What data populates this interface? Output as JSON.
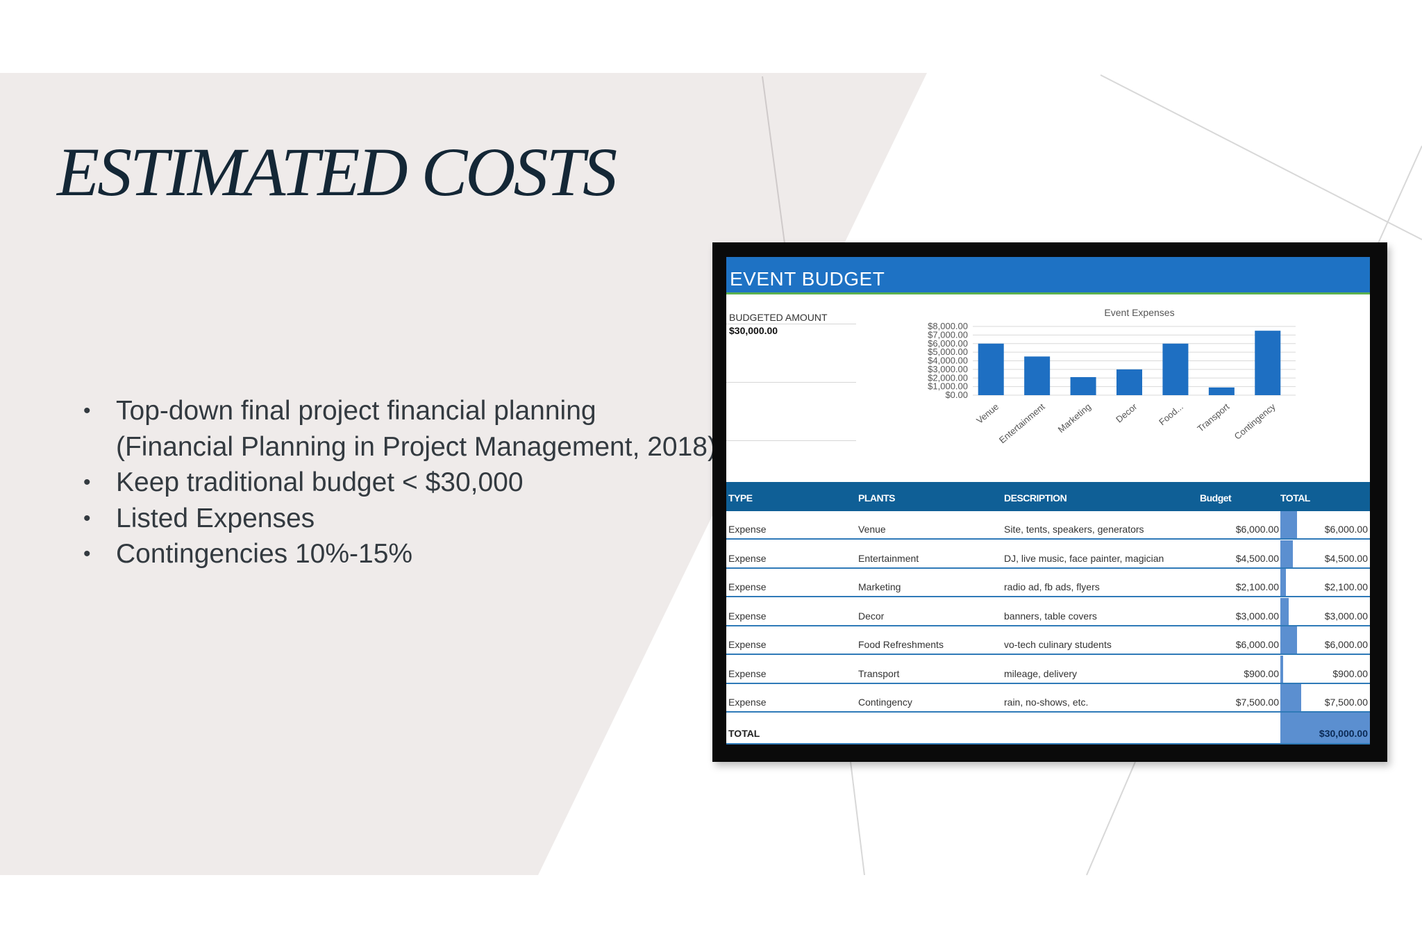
{
  "slide": {
    "title": "ESTIMATED COSTS",
    "bullets": [
      "Top-down final project financial planning",
      "(Financial Planning in Project Management, 2018)",
      "Keep traditional budget < $30,000",
      "Listed Expenses",
      "Contingencies 10%-15%"
    ],
    "bullet_symbol": "•"
  },
  "spreadsheet": {
    "title": "EVENT BUDGET",
    "budgeted_amount_label": "BUDGETED AMOUNT",
    "budgeted_amount_value": "$30,000.00",
    "columns": [
      "TYPE",
      "PLANTS",
      "DESCRIPTION",
      "Budget",
      "TOTAL"
    ],
    "rows": [
      {
        "type": "Expense",
        "plant": "Venue",
        "description": "Site, tents, speakers, generators",
        "budget": "$6,000.00",
        "total": "$6,000.00",
        "fill": 0.8
      },
      {
        "type": "Expense",
        "plant": "Entertainment",
        "description": "DJ, live music, face painter, magician",
        "budget": "$4,500.00",
        "total": "$4,500.00",
        "fill": 0.6
      },
      {
        "type": "Expense",
        "plant": "Marketing",
        "description": "radio ad, fb ads, flyers",
        "budget": "$2,100.00",
        "total": "$2,100.00",
        "fill": 0.28
      },
      {
        "type": "Expense",
        "plant": "Decor",
        "description": "banners, table covers",
        "budget": "$3,000.00",
        "total": "$3,000.00",
        "fill": 0.4
      },
      {
        "type": "Expense",
        "plant": "Food Refreshments",
        "description": "vo-tech culinary students",
        "budget": "$6,000.00",
        "total": "$6,000.00",
        "fill": 0.8
      },
      {
        "type": "Expense",
        "plant": "Transport",
        "description": "mileage, delivery",
        "budget": "$900.00",
        "total": "$900.00",
        "fill": 0.12
      },
      {
        "type": "Expense",
        "plant": "Contingency",
        "description": "rain, no-shows, etc.",
        "budget": "$7,500.00",
        "total": "$7,500.00",
        "fill": 1.0
      }
    ],
    "total_label": "TOTAL",
    "total_value": "$30,000.00"
  },
  "chart_data": {
    "type": "bar",
    "title": "Event Expenses",
    "categories": [
      "Venue",
      "Entertainment",
      "Marketing",
      "Decor",
      "Food...",
      "Transport",
      "Contingency"
    ],
    "values": [
      6000,
      4500,
      2100,
      3000,
      6000,
      900,
      7500
    ],
    "ylim": [
      0,
      8000
    ],
    "y_ticks": [
      "$0.00",
      "$1,000.00",
      "$2,000.00",
      "$3,000.00",
      "$4,000.00",
      "$5,000.00",
      "$6,000.00",
      "$7,000.00",
      "$8,000.00"
    ],
    "xlabel": "",
    "ylabel": "",
    "grid": true,
    "color": "#1e6fc2"
  }
}
